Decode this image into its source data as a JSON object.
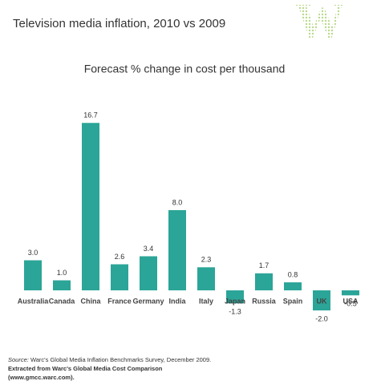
{
  "chart_data": {
    "type": "bar",
    "title": "Television media inflation, 2010 vs 2009",
    "subtitle": "Forecast % change in cost per thousand",
    "categories": [
      "Australia",
      "Canada",
      "China",
      "France",
      "Germany",
      "India",
      "Italy",
      "Japan",
      "Russia",
      "Spain",
      "UK",
      "USA"
    ],
    "values": [
      3.0,
      1.0,
      16.7,
      2.6,
      3.4,
      8.0,
      2.3,
      -1.3,
      1.7,
      0.8,
      -2.0,
      -0.5
    ],
    "value_labels": [
      "3.0",
      "1.0",
      "16.7",
      "2.6",
      "3.4",
      "8.0",
      "2.3",
      "-1.3",
      "1.7",
      "0.8",
      "-2.0",
      "-0.5"
    ],
    "color": "#2ba598",
    "source_label": "Source:",
    "source_text": "Warc's Global Media Inflation Benchmarks Survey, December 2009.",
    "extract_lines": [
      "Extracted from Warc's Global Media Cost Comparison",
      "(www.gmcc.warc.com)."
    ]
  }
}
